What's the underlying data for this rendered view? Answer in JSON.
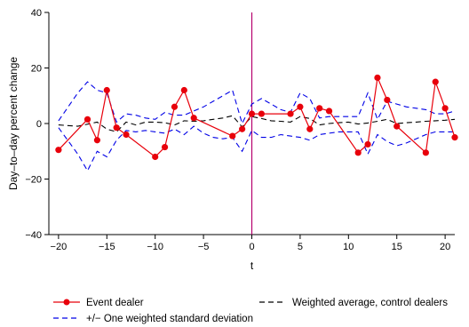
{
  "chart_data": {
    "type": "line",
    "xlabel": "t",
    "ylabel": "Day–to–day percent change",
    "xlim": [
      -21,
      21
    ],
    "ylim": [
      -40,
      40
    ],
    "xticks": [
      -20,
      -15,
      -10,
      -5,
      0,
      5,
      10,
      15,
      20
    ],
    "yticks": [
      -40,
      -20,
      0,
      20,
      40
    ],
    "event_line_x": 0,
    "grid": false,
    "legend_position": "bottom",
    "series": [
      {
        "name": "Event dealer",
        "color": "#e8000b",
        "style": "solid-with-markers",
        "x": [
          -20,
          -17,
          -16,
          -15,
          -14,
          -13,
          -10,
          -9,
          -8,
          -7,
          -6,
          -2,
          -1,
          0,
          1,
          4,
          5,
          6,
          7,
          8,
          11,
          12,
          13,
          14,
          15,
          18,
          19,
          20,
          21
        ],
        "y": [
          -9.5,
          1.5,
          -6,
          12,
          -1.5,
          -4,
          -12,
          -8.5,
          6,
          12,
          2,
          -4.5,
          -2,
          3.5,
          3.5,
          3.5,
          6,
          -2,
          5.5,
          4.5,
          -10.5,
          -7.5,
          16.5,
          8.5,
          -1,
          -10.5,
          15,
          5.5,
          -5
        ]
      },
      {
        "name": "Weighted average, control dealers",
        "color": "#000000",
        "style": "dashed",
        "x": [
          -20,
          -18,
          -16,
          -15,
          -14,
          -13,
          -12,
          -11,
          -10,
          -9,
          -8,
          -7,
          -6,
          -5,
          -4,
          -3,
          -2,
          -1,
          0,
          1,
          2,
          3,
          4,
          5,
          6,
          7,
          8,
          9,
          10,
          11,
          12,
          13,
          14,
          15,
          16,
          17,
          18,
          19,
          20,
          21
        ],
        "y": [
          -0.5,
          -1,
          0.5,
          -2,
          -3,
          0.5,
          -0.5,
          0.5,
          0.5,
          0.3,
          -0.5,
          1,
          0.8,
          1,
          1.5,
          2,
          2.8,
          -1.2,
          2.5,
          1.8,
          1,
          0.8,
          0.5,
          2.5,
          1.8,
          -0.5,
          0,
          0.3,
          0.5,
          -0.2,
          0.2,
          0.8,
          1.5,
          0,
          0.3,
          0.5,
          0.8,
          1,
          1.2,
          1.5
        ]
      },
      {
        "name": "+/− One weighted standard deviation",
        "color": "#0000e6",
        "style": "dashed",
        "x": [
          -20,
          -18,
          -17,
          -16,
          -15,
          -14,
          -13,
          -12,
          -11,
          -10,
          -9,
          -8,
          -7,
          -6,
          -5,
          -4,
          -3,
          -2,
          -1,
          0,
          1,
          2,
          3,
          4,
          5,
          6,
          7,
          8,
          9,
          10,
          11,
          12,
          13,
          14,
          15,
          16,
          17,
          18,
          19,
          20,
          21
        ],
        "y": [
          1,
          11,
          15,
          12,
          11,
          0.5,
          3.5,
          3,
          2,
          1.5,
          4,
          3,
          3,
          4.5,
          6,
          8,
          10,
          12,
          0,
          7,
          9,
          7,
          5,
          4,
          11,
          9,
          2,
          2.5,
          2.5,
          2.5,
          2.5,
          11,
          1.5,
          8,
          7,
          6,
          5.5,
          5,
          3.5,
          3.5,
          4.5
        ]
      },
      {
        "name": "",
        "color": "#0000e6",
        "style": "dashed",
        "x": [
          -20,
          -18,
          -17,
          -16,
          -15,
          -14,
          -13,
          -12,
          -11,
          -10,
          -9,
          -8,
          -7,
          -6,
          -5,
          -4,
          -3,
          -2,
          -1,
          0,
          1,
          2,
          3,
          4,
          5,
          6,
          7,
          8,
          9,
          10,
          11,
          12,
          13,
          14,
          15,
          16,
          17,
          18,
          19,
          20,
          21
        ],
        "y": [
          -1.5,
          -11,
          -17,
          -10,
          -12,
          -6,
          -2.5,
          -3,
          -2.5,
          -3,
          -3.5,
          -2,
          -4,
          -1,
          -3.5,
          -5,
          -5.5,
          -5,
          -10,
          -2.5,
          -5,
          -5,
          -4,
          -4.5,
          -5,
          -6,
          -4,
          -3.5,
          -3,
          -3,
          -3,
          -11,
          -4,
          -6.5,
          -8,
          -7,
          -5.5,
          -4,
          -3,
          -3,
          -3
        ]
      }
    ]
  }
}
